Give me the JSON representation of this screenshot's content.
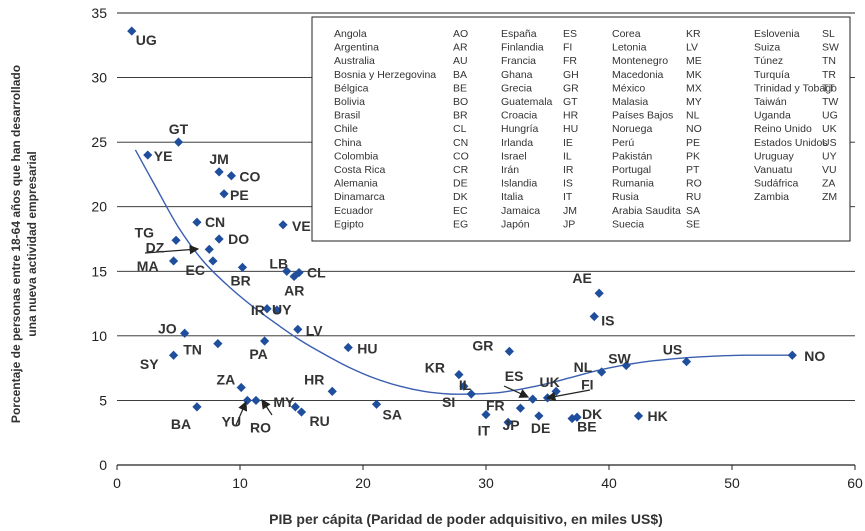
{
  "chart_data": {
    "type": "scatter",
    "xlabel": "PIB per cápita (Paridad de poder adquisitivo, en miles US$)",
    "ylabel": [
      "Porcentaje de personas entre 18-64 años que han desarrollado",
      "una nueva actividad empresarial"
    ],
    "xlim": [
      0,
      60
    ],
    "ylim": [
      0,
      35
    ],
    "x_ticks": [
      "0",
      "10",
      "20",
      "30",
      "40",
      "50",
      "60"
    ],
    "y_ticks": [
      "0",
      "5",
      "10",
      "15",
      "20",
      "25",
      "30",
      "35"
    ],
    "grid": "horizontal",
    "legend_placement": "top-right",
    "marker_color": "#1f4e9c",
    "curve_color": "#3a5fb0",
    "points": [
      {
        "code": "UG",
        "x": 1.2,
        "y": 33.6
      },
      {
        "code": "YE",
        "x": 2.5,
        "y": 24.0
      },
      {
        "code": "GT",
        "x": 5.0,
        "y": 25.0
      },
      {
        "code": "JM",
        "x": 8.3,
        "y": 22.7
      },
      {
        "code": "CO",
        "x": 9.3,
        "y": 22.4
      },
      {
        "code": "PE",
        "x": 8.7,
        "y": 21.0
      },
      {
        "code": "VE",
        "x": 13.5,
        "y": 18.6
      },
      {
        "code": "CN",
        "x": 6.5,
        "y": 18.8
      },
      {
        "code": "TG",
        "x": 4.8,
        "y": 17.4
      },
      {
        "code": "DO",
        "x": 8.3,
        "y": 17.5
      },
      {
        "code": "DZ",
        "x": 7.5,
        "y": 16.7
      },
      {
        "code": "MA",
        "x": 4.6,
        "y": 15.8
      },
      {
        "code": "EC",
        "x": 7.8,
        "y": 15.8
      },
      {
        "code": "BR",
        "x": 10.2,
        "y": 15.3
      },
      {
        "code": "LB",
        "x": 13.8,
        "y": 15.0
      },
      {
        "code": "CL",
        "x": 14.8,
        "y": 14.9
      },
      {
        "code": "AR",
        "x": 14.4,
        "y": 14.6
      },
      {
        "code": "UY",
        "x": 12.2,
        "y": 12.1
      },
      {
        "code": "IR",
        "x": 13.0,
        "y": 12.0
      },
      {
        "code": "LV",
        "x": 14.7,
        "y": 10.5
      },
      {
        "code": "JO",
        "x": 5.5,
        "y": 10.2
      },
      {
        "code": "PA",
        "x": 12.0,
        "y": 9.6
      },
      {
        "code": "HU",
        "x": 18.8,
        "y": 9.1
      },
      {
        "code": "TN",
        "x": 8.2,
        "y": 9.4
      },
      {
        "code": "SY",
        "x": 4.6,
        "y": 8.5
      },
      {
        "code": "ZA",
        "x": 10.1,
        "y": 6.0
      },
      {
        "code": "BA",
        "x": 6.5,
        "y": 4.5
      },
      {
        "code": "YU",
        "x": 10.6,
        "y": 5.0
      },
      {
        "code": "RO",
        "x": 11.3,
        "y": 5.0
      },
      {
        "code": "MY",
        "x": 14.5,
        "y": 4.5
      },
      {
        "code": "RU",
        "x": 15.0,
        "y": 4.1
      },
      {
        "code": "HR",
        "x": 17.5,
        "y": 5.7
      },
      {
        "code": "SA",
        "x": 21.1,
        "y": 4.7
      },
      {
        "code": "KR",
        "x": 27.8,
        "y": 7.0
      },
      {
        "code": "IL",
        "x": 28.2,
        "y": 6.1
      },
      {
        "code": "SI",
        "x": 28.8,
        "y": 5.5
      },
      {
        "code": "GR",
        "x": 31.9,
        "y": 8.8
      },
      {
        "code": "ES",
        "x": 33.8,
        "y": 5.1
      },
      {
        "code": "FR",
        "x": 30.0,
        "y": 3.9
      },
      {
        "code": "IT",
        "x": 31.8,
        "y": 3.3
      },
      {
        "code": "JP",
        "x": 32.8,
        "y": 4.4
      },
      {
        "code": "DE",
        "x": 34.3,
        "y": 3.8
      },
      {
        "code": "UK",
        "x": 35.0,
        "y": 5.2
      },
      {
        "code": "FI",
        "x": 35.7,
        "y": 5.7
      },
      {
        "code": "DK",
        "x": 37.4,
        "y": 3.7
      },
      {
        "code": "BE",
        "x": 37.0,
        "y": 3.6
      },
      {
        "code": "AE",
        "x": 39.2,
        "y": 13.3
      },
      {
        "code": "IS",
        "x": 38.8,
        "y": 11.5
      },
      {
        "code": "NL",
        "x": 39.4,
        "y": 7.2
      },
      {
        "code": "SW",
        "x": 41.4,
        "y": 7.7
      },
      {
        "code": "HK",
        "x": 42.4,
        "y": 3.8
      },
      {
        "code": "US",
        "x": 46.3,
        "y": 8.0
      },
      {
        "code": "NO",
        "x": 54.9,
        "y": 8.5
      }
    ],
    "trend_curve": [
      [
        1.5,
        24.4
      ],
      [
        3,
        21.8
      ],
      [
        5,
        18.4
      ],
      [
        7,
        15.8
      ],
      [
        9,
        13.9
      ],
      [
        11,
        12.3
      ],
      [
        13,
        10.9
      ],
      [
        15,
        9.6
      ],
      [
        17,
        8.5
      ],
      [
        19,
        7.5
      ],
      [
        21,
        6.7
      ],
      [
        23,
        6.1
      ],
      [
        25,
        5.7
      ],
      [
        27,
        5.5
      ],
      [
        29,
        5.5
      ],
      [
        31,
        5.6
      ],
      [
        33,
        5.9
      ],
      [
        35,
        6.3
      ],
      [
        37,
        6.8
      ],
      [
        39,
        7.3
      ],
      [
        41,
        7.7
      ],
      [
        43,
        8.0
      ],
      [
        45,
        8.2
      ],
      [
        47,
        8.35
      ],
      [
        49,
        8.45
      ],
      [
        51,
        8.5
      ],
      [
        53,
        8.5
      ],
      [
        55,
        8.5
      ]
    ],
    "legend_columns": [
      [
        [
          "Angola",
          "AO"
        ],
        [
          "Argentina",
          "AR"
        ],
        [
          "Australia",
          "AU"
        ],
        [
          "Bosnia y Herzegovina",
          "BA"
        ],
        [
          "Bélgica",
          "BE"
        ],
        [
          "Bolivia",
          "BO"
        ],
        [
          "Brasil",
          "BR"
        ],
        [
          "Chile",
          "CL"
        ],
        [
          "China",
          "CN"
        ],
        [
          "Colombia",
          "CO"
        ],
        [
          "Costa Rica",
          "CR"
        ],
        [
          "Alemania",
          "DE"
        ],
        [
          "Dinamarca",
          "DK"
        ],
        [
          "Ecuador",
          "EC"
        ],
        [
          "Egipto",
          "EG"
        ]
      ],
      [
        [
          "España",
          "ES"
        ],
        [
          "Finlandia",
          "FI"
        ],
        [
          "Francia",
          "FR"
        ],
        [
          "Ghana",
          "GH"
        ],
        [
          "Grecia",
          "GR"
        ],
        [
          "Guatemala",
          "GT"
        ],
        [
          "Croacia",
          "HR"
        ],
        [
          "Hungría",
          "HU"
        ],
        [
          "Irlanda",
          "IE"
        ],
        [
          "Israel",
          "IL"
        ],
        [
          "Irán",
          "IR"
        ],
        [
          "Islandia",
          "IS"
        ],
        [
          "Italia",
          "IT"
        ],
        [
          "Jamaica",
          "JM"
        ],
        [
          "Japón",
          "JP"
        ]
      ],
      [
        [
          "Corea",
          "KR"
        ],
        [
          "Letonia",
          "LV"
        ],
        [
          "Montenegro",
          "ME"
        ],
        [
          "Macedonia",
          "MK"
        ],
        [
          "México",
          "MX"
        ],
        [
          "Malasia",
          "MY"
        ],
        [
          "Países Bajos",
          "NL"
        ],
        [
          "Noruega",
          "NO"
        ],
        [
          "Perú",
          "PE"
        ],
        [
          "Pakistán",
          "PK"
        ],
        [
          "Portugal",
          "PT"
        ],
        [
          "Rumania",
          "RO"
        ],
        [
          "Rusia",
          "RU"
        ],
        [
          "Arabia Saudita",
          "SA"
        ],
        [
          "Suecia",
          "SE"
        ]
      ],
      [
        [
          "Eslovenia",
          "SL"
        ],
        [
          "Suiza",
          "SW"
        ],
        [
          "Túnez",
          "TN"
        ],
        [
          "Turquía",
          "TR"
        ],
        [
          "Trinidad y Tobago",
          "TT"
        ],
        [
          "Taiwán",
          "TW"
        ],
        [
          "Uganda",
          "UG"
        ],
        [
          "Reino Unido",
          "UK"
        ],
        [
          "Estados Unidos",
          "US"
        ],
        [
          "Uruguay",
          "UY"
        ],
        [
          "Vanuatu",
          "VU"
        ],
        [
          "Sudáfrica",
          "ZA"
        ],
        [
          "Zambia",
          "ZM"
        ]
      ]
    ]
  }
}
